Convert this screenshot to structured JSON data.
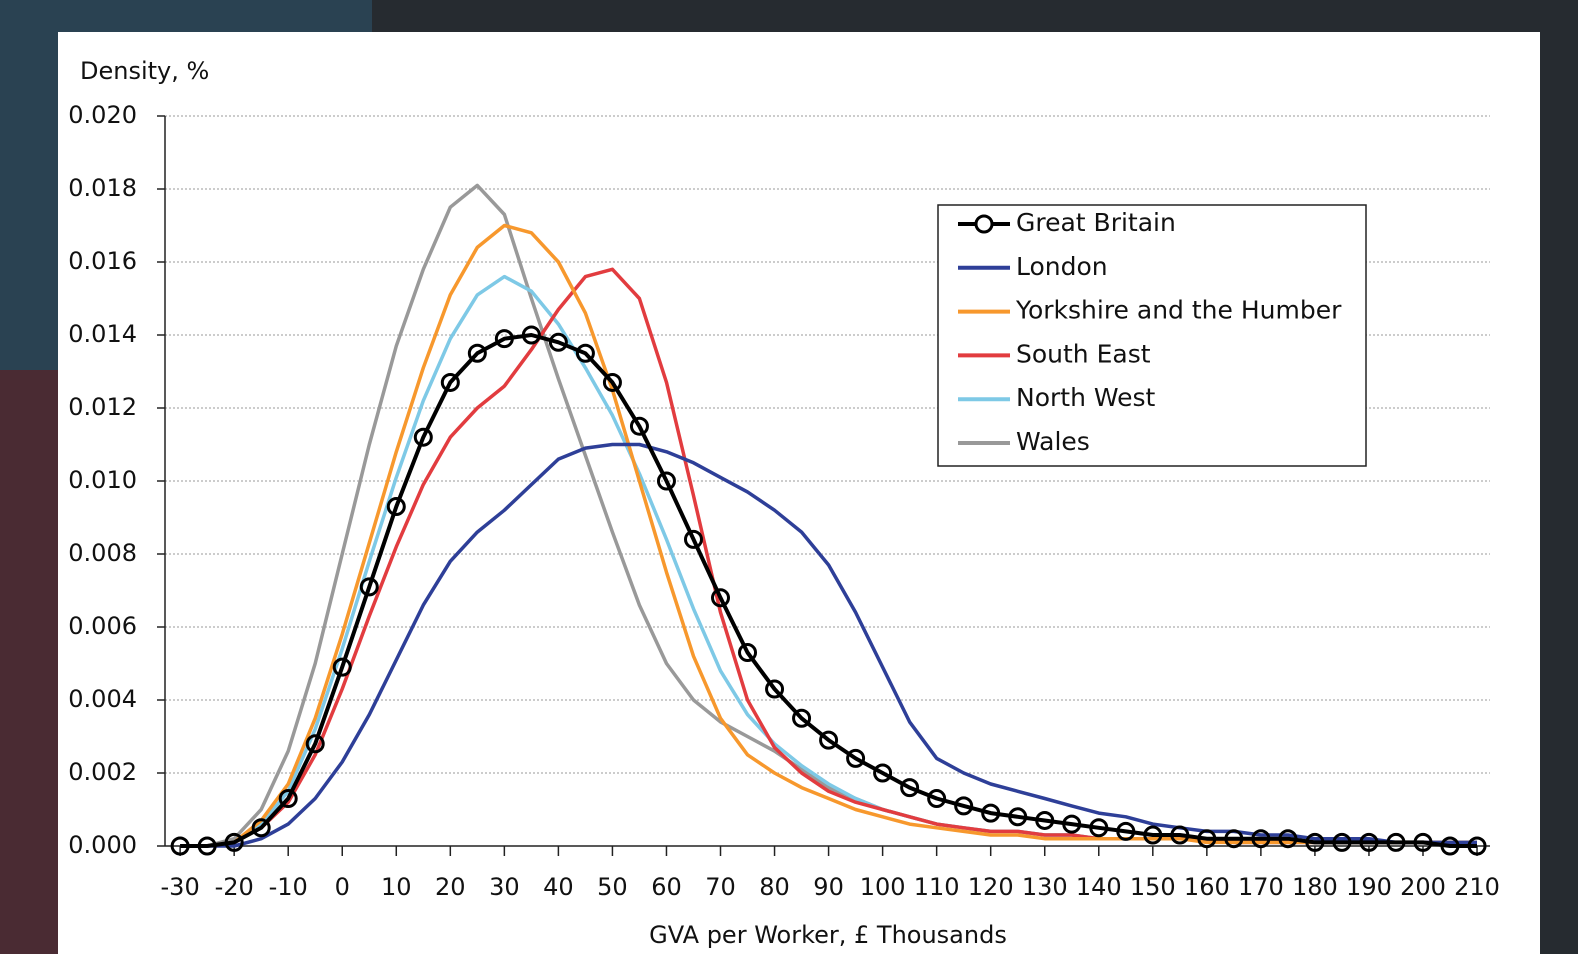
{
  "chart_data": {
    "type": "line",
    "y_label": "Density, %",
    "x_label": "GVA per Worker, £ Thousands",
    "x": [
      -30,
      -25,
      -20,
      -15,
      -10,
      -5,
      0,
      5,
      10,
      15,
      20,
      25,
      30,
      35,
      40,
      45,
      50,
      55,
      60,
      65,
      70,
      75,
      80,
      85,
      90,
      95,
      100,
      105,
      110,
      115,
      120,
      125,
      130,
      135,
      140,
      145,
      150,
      155,
      160,
      165,
      170,
      175,
      180,
      185,
      190,
      195,
      200,
      205,
      210
    ],
    "xlim": [
      -32.8,
      212.4
    ],
    "xticks": [
      -30,
      -20,
      -10,
      0,
      10,
      20,
      30,
      40,
      50,
      60,
      70,
      80,
      90,
      100,
      110,
      120,
      130,
      140,
      150,
      160,
      170,
      180,
      190,
      200,
      210
    ],
    "ylim": [
      0,
      0.02
    ],
    "yticks": [
      {
        "value": 0,
        "label": "0.000"
      },
      {
        "value": 0.002,
        "label": "0.002"
      },
      {
        "value": 0.004,
        "label": "0.004"
      },
      {
        "value": 0.006,
        "label": "0.006"
      },
      {
        "value": 0.008,
        "label": "0.008"
      },
      {
        "value": 0.01,
        "label": "0.010"
      },
      {
        "value": 0.012,
        "label": "0.012"
      },
      {
        "value": 0.014,
        "label": "0.014"
      },
      {
        "value": 0.016,
        "label": "0.016"
      },
      {
        "value": 0.018,
        "label": "0.018"
      },
      {
        "value": 0.02,
        "label": "0.020"
      }
    ],
    "grid": true,
    "legend": "upper right",
    "series": [
      {
        "name": "Great Britain",
        "color": "#000000",
        "marker": "circle",
        "values": [
          0,
          0,
          0.0001,
          0.0005,
          0.0013,
          0.0028,
          0.0049,
          0.0071,
          0.0093,
          0.0112,
          0.0127,
          0.0135,
          0.0139,
          0.014,
          0.0138,
          0.0135,
          0.0127,
          0.0115,
          0.01,
          0.0084,
          0.0068,
          0.0053,
          0.0043,
          0.0035,
          0.0029,
          0.0024,
          0.002,
          0.0016,
          0.0013,
          0.0011,
          0.0009,
          0.0008,
          0.0007,
          0.0006,
          0.0005,
          0.0004,
          0.0003,
          0.0003,
          0.0002,
          0.0002,
          0.0002,
          0.0002,
          0.0001,
          0.0001,
          0.0001,
          0.0001,
          0.0001,
          0,
          0
        ]
      },
      {
        "name": "London",
        "color": "#2e3f98",
        "values": [
          0,
          0,
          0,
          0.0002,
          0.0006,
          0.0013,
          0.0023,
          0.0036,
          0.0051,
          0.0066,
          0.0078,
          0.0086,
          0.0092,
          0.0099,
          0.0106,
          0.0109,
          0.011,
          0.011,
          0.0108,
          0.0105,
          0.0101,
          0.0097,
          0.0092,
          0.0086,
          0.0077,
          0.0064,
          0.0049,
          0.0034,
          0.0024,
          0.002,
          0.0017,
          0.0015,
          0.0013,
          0.0011,
          0.0009,
          0.0008,
          0.0006,
          0.0005,
          0.0004,
          0.0004,
          0.0003,
          0.0003,
          0.0002,
          0.0002,
          0.0002,
          0.0001,
          0.0001,
          0.0001,
          0.0001
        ]
      },
      {
        "name": "Yorkshire and the Humber",
        "color": "#f7982d",
        "values": [
          0,
          0,
          0.0001,
          0.0007,
          0.0017,
          0.0035,
          0.0058,
          0.0083,
          0.0108,
          0.0131,
          0.0151,
          0.0164,
          0.017,
          0.0168,
          0.016,
          0.0146,
          0.0125,
          0.01,
          0.0075,
          0.0052,
          0.0035,
          0.0025,
          0.002,
          0.0016,
          0.0013,
          0.001,
          0.0008,
          0.0006,
          0.0005,
          0.0004,
          0.0003,
          0.0003,
          0.0002,
          0.0002,
          0.0002,
          0.0002,
          0.0002,
          0.0002,
          0.0001,
          0.0001,
          0.0001,
          0.0001,
          0.0001,
          0.0001,
          0.0001,
          0.0001,
          0.0001,
          0.0001,
          0.0001
        ]
      },
      {
        "name": "South East",
        "color": "#e23c3f",
        "values": [
          0,
          0,
          0.0001,
          0.0005,
          0.0012,
          0.0025,
          0.0043,
          0.0063,
          0.0082,
          0.0099,
          0.0112,
          0.012,
          0.0126,
          0.0136,
          0.0147,
          0.0156,
          0.0158,
          0.015,
          0.0127,
          0.0096,
          0.0064,
          0.004,
          0.0027,
          0.002,
          0.0015,
          0.0012,
          0.001,
          0.0008,
          0.0006,
          0.0005,
          0.0004,
          0.0004,
          0.0003,
          0.0003,
          0.0002,
          0.0002,
          0.0002,
          0.0002,
          0.0002,
          0.0001,
          0.0001,
          0.0001,
          0.0001,
          0.0001,
          0.0001,
          0.0001,
          0.0001,
          0.0001,
          0.0001
        ]
      },
      {
        "name": "North West",
        "color": "#7ec9e6",
        "values": [
          0,
          0,
          0.0001,
          0.0006,
          0.0015,
          0.0032,
          0.0054,
          0.0078,
          0.0101,
          0.0122,
          0.0139,
          0.0151,
          0.0156,
          0.0152,
          0.0143,
          0.0131,
          0.0118,
          0.0102,
          0.0084,
          0.0065,
          0.0048,
          0.0036,
          0.0028,
          0.0022,
          0.0017,
          0.0013,
          0.001,
          0.0008,
          0.0006,
          0.0005,
          0.0004,
          0.0004,
          0.0003,
          0.0003,
          0.0002,
          0.0002,
          0.0002,
          0.0002,
          0.0002,
          0.0001,
          0.0001,
          0.0001,
          0.0001,
          0.0001,
          0.0001,
          0.0001,
          0.0001,
          0.0001,
          0.0001
        ]
      },
      {
        "name": "Wales",
        "color": "#999999",
        "values": [
          0,
          0,
          0.0002,
          0.001,
          0.0026,
          0.005,
          0.008,
          0.011,
          0.0137,
          0.0158,
          0.0175,
          0.0181,
          0.0173,
          0.015,
          0.0128,
          0.0107,
          0.0086,
          0.0066,
          0.005,
          0.004,
          0.0034,
          0.003,
          0.0026,
          0.0021,
          0.0016,
          0.0013,
          0.001,
          0.0008,
          0.0006,
          0.0005,
          0.0004,
          0.0004,
          0.0003,
          0.0003,
          0.0002,
          0.0002,
          0.0002,
          0.0002,
          0.0002,
          0.0001,
          0.0001,
          0.0001,
          0.0001,
          0.0001,
          0.0001,
          0.0001,
          0.0001,
          0.0001,
          0.0001
        ]
      }
    ]
  }
}
